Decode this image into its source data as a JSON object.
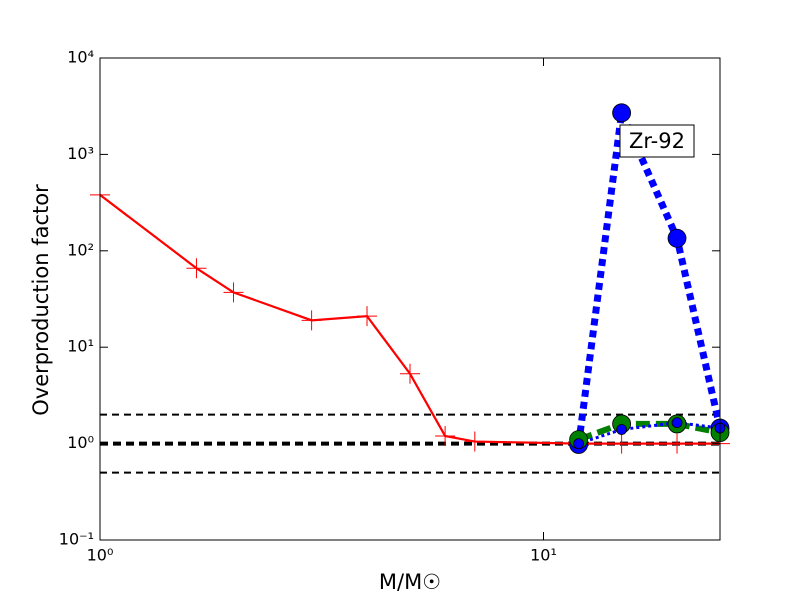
{
  "chart_data": {
    "type": "line",
    "xlabel": "M/M☉",
    "ylabel": "Overproduction factor",
    "xscale": "log",
    "yscale": "log",
    "xlim": [
      1,
      25
    ],
    "ylim": [
      0.1,
      10000
    ],
    "xticks": [
      {
        "value": 1,
        "label": "10⁰"
      },
      {
        "value": 10,
        "label": "10¹"
      }
    ],
    "yticks": [
      {
        "value": 0.1,
        "label": "10⁻¹"
      },
      {
        "value": 1,
        "label": "10⁰"
      },
      {
        "value": 10,
        "label": "10¹"
      },
      {
        "value": 100,
        "label": "10²"
      },
      {
        "value": 1000,
        "label": "10³"
      },
      {
        "value": 10000,
        "label": "10⁴"
      }
    ],
    "hlines": [
      {
        "value": 2,
        "style": "dashed"
      },
      {
        "value": 1,
        "style": "dashed-thick"
      },
      {
        "value": 0.5,
        "style": "dashed"
      }
    ],
    "annotation": "Zr-92",
    "x": [
      1,
      1.65,
      2,
      3,
      4,
      5,
      6,
      7,
      12,
      15,
      20,
      25
    ],
    "series": [
      {
        "color": "#ff0000",
        "line_style": "solid",
        "marker": "plus",
        "values": [
          380,
          66,
          37,
          19,
          21,
          5.3,
          1.2,
          1.05,
          1.0,
          1.0,
          1.0,
          1.0
        ]
      },
      {
        "color": "#0000ff",
        "line_style": "dotted-thick",
        "marker": "circle-large",
        "values": [
          null,
          null,
          null,
          null,
          null,
          null,
          null,
          null,
          0.98,
          2700,
          135,
          1.45
        ]
      },
      {
        "color": "#007f00",
        "line_style": "dashed-thick",
        "marker": "circle-large",
        "values": [
          null,
          null,
          null,
          null,
          null,
          null,
          null,
          null,
          1.1,
          1.6,
          1.6,
          1.3
        ]
      },
      {
        "color": "#0000ff",
        "line_style": "dotted",
        "marker": "circle-small",
        "values": [
          null,
          null,
          null,
          null,
          null,
          null,
          null,
          null,
          1.0,
          1.4,
          1.65,
          1.45
        ]
      }
    ]
  }
}
